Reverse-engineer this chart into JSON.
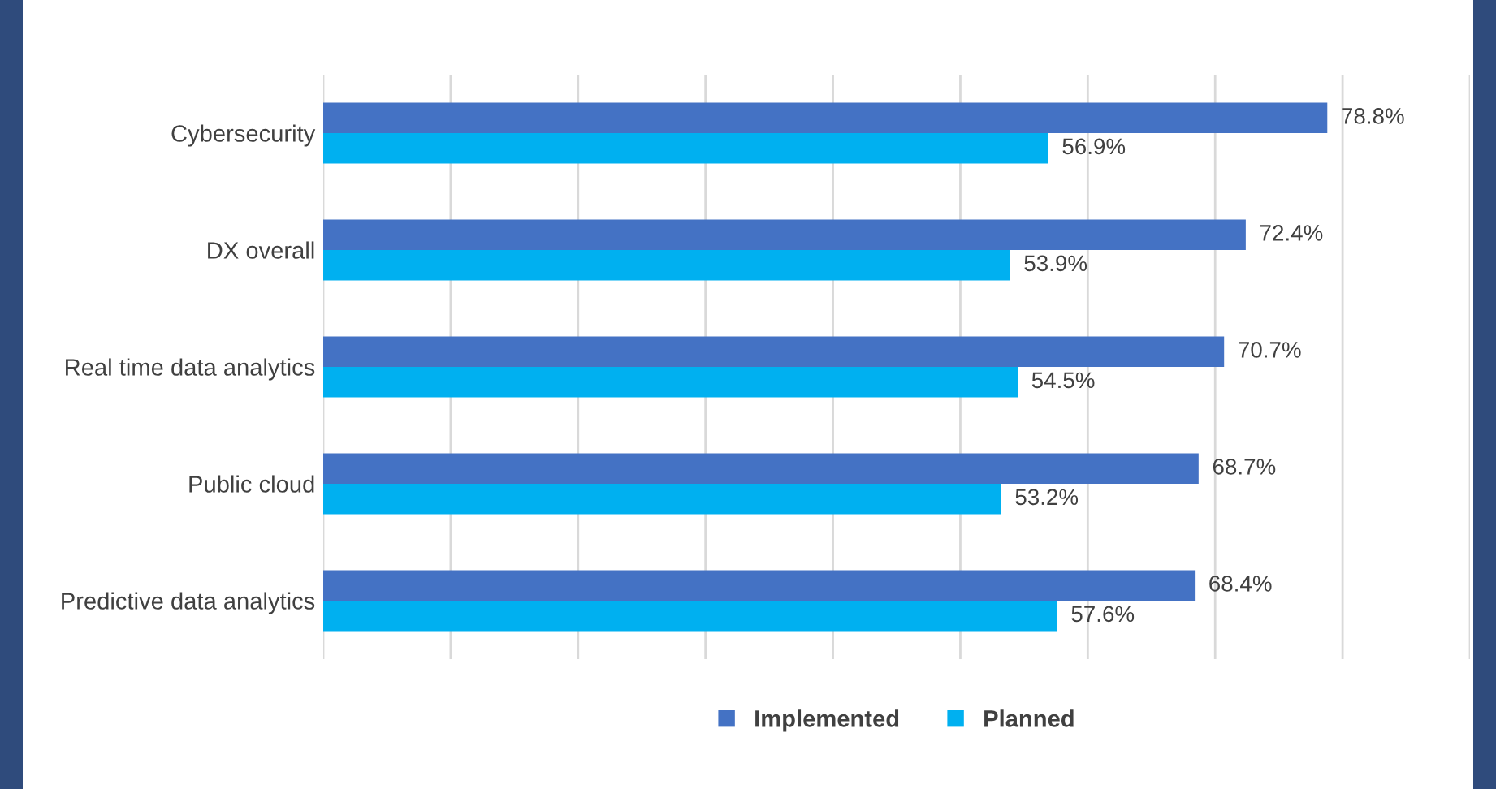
{
  "chart_data": {
    "type": "bar",
    "orientation": "horizontal",
    "categories": [
      "Cybersecurity",
      "DX overall",
      "Real time data analytics",
      "Public cloud",
      "Predictive data analytics"
    ],
    "series": [
      {
        "name": "Implemented",
        "color": "#4472c4",
        "values": [
          78.8,
          72.4,
          70.7,
          68.7,
          68.4
        ],
        "value_labels": [
          "78.8%",
          "72.4%",
          "70.7%",
          "68.7%",
          "68.4%"
        ]
      },
      {
        "name": "Planned",
        "color": "#00b0f0",
        "values": [
          56.9,
          53.9,
          54.5,
          53.2,
          57.6
        ],
        "value_labels": [
          "56.9%",
          "53.9%",
          "54.5%",
          "53.2%",
          "57.6%"
        ]
      }
    ],
    "xlim": [
      0,
      90
    ],
    "xticks": [
      {
        "value": 0,
        "label": null
      },
      {
        "value": 10,
        "label": null
      },
      {
        "value": 20,
        "label": null
      },
      {
        "value": 30,
        "label": null
      },
      {
        "value": 40,
        "label": null
      },
      {
        "value": 50,
        "label": null
      },
      {
        "value": 60,
        "label": null
      },
      {
        "value": 70,
        "label": null
      },
      {
        "value": 80,
        "label": null
      },
      {
        "value": 90,
        "label": null
      }
    ],
    "grid": "x",
    "legend": "bottom"
  }
}
